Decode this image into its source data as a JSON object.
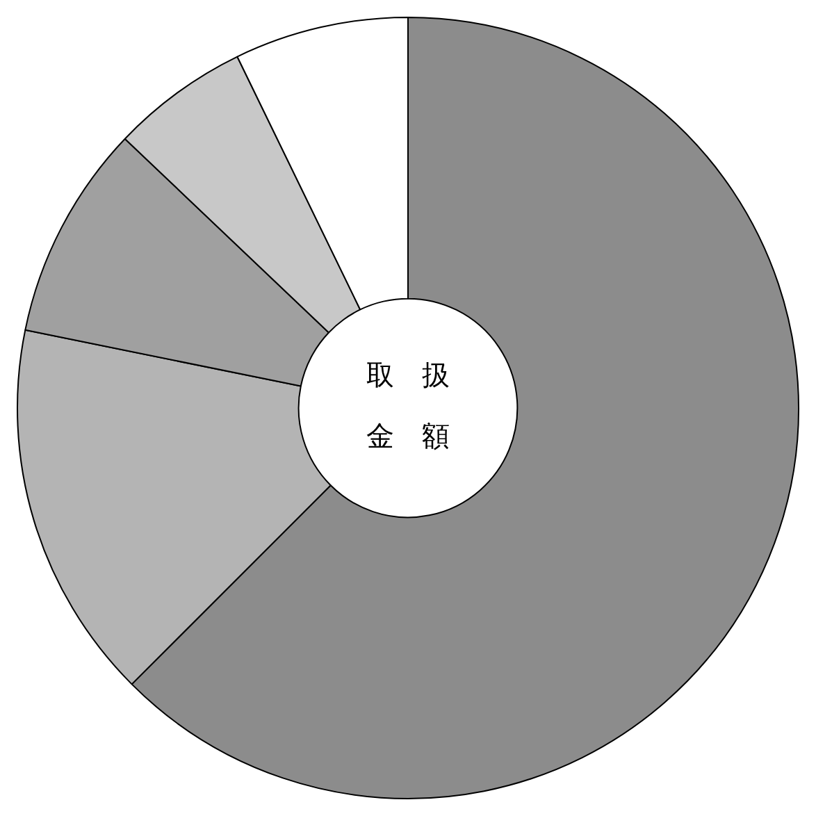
{
  "chart_data": {
    "type": "donut",
    "categories": [
      null,
      null,
      null,
      null,
      null
    ],
    "values": [
      62.5,
      15.7,
      8.9,
      5.7,
      7.2
    ],
    "colors": [
      "#8c8c8c",
      "#b4b4b4",
      "#a0a0a0",
      "#c8c8c8",
      "#ffffff"
    ],
    "annotations": [
      "取　扱",
      "金　額"
    ],
    "legend": false
  }
}
